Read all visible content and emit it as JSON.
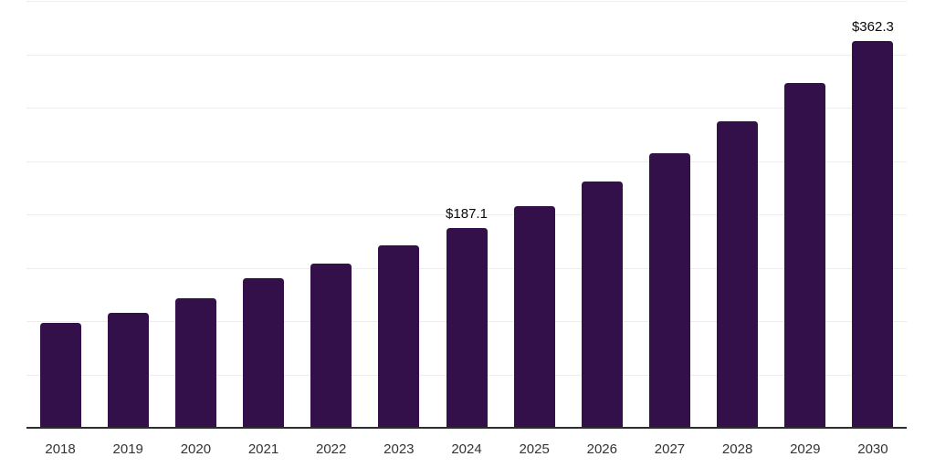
{
  "chart_data": {
    "type": "bar",
    "title": "",
    "xlabel": "",
    "ylabel": "",
    "categories": [
      "2018",
      "2019",
      "2020",
      "2021",
      "2022",
      "2023",
      "2024",
      "2025",
      "2026",
      "2027",
      "2028",
      "2029",
      "2030"
    ],
    "values": [
      98.0,
      107.9,
      121.5,
      140.3,
      153.7,
      170.6,
      187.1,
      207.8,
      231.2,
      257.2,
      286.8,
      322.7,
      362.3
    ],
    "data_labels": [
      null,
      null,
      null,
      null,
      null,
      null,
      "$187.1",
      null,
      null,
      null,
      null,
      null,
      "$362.3"
    ],
    "ylim": [
      0,
      400
    ],
    "grid_interval": 50,
    "grid_on": true,
    "legend_position": "none",
    "colors": {
      "bar": "#34104A",
      "gridline": "#ededed",
      "axis_line": "#2d2d2d",
      "data_label": "#0a0a0a",
      "tick_label": "#333333",
      "background": "#ffffff"
    }
  }
}
